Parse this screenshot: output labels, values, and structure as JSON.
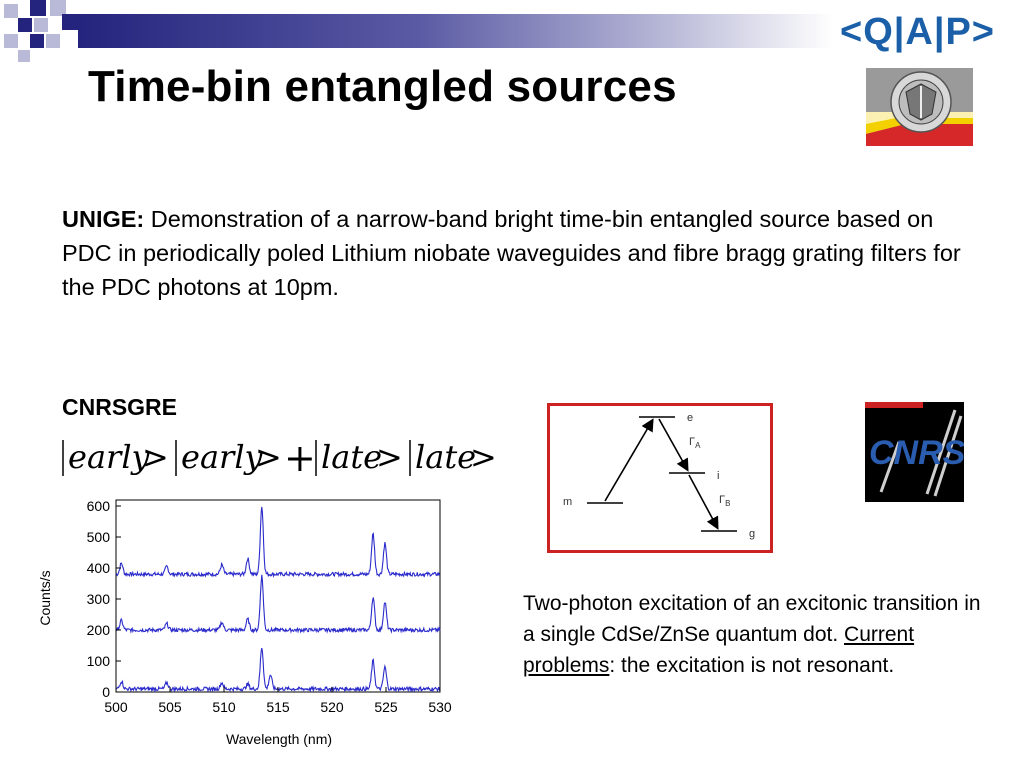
{
  "slide": {
    "title": "Time-bin entangled sources",
    "logo_text": "<Q|A|P>",
    "unige": {
      "label": "UNIGE:",
      "text": " Demonstration of a narrow-band bright time-bin entangled source based on PDC in periodically poled Lithium niobate waveguides and fibre bragg grating filters for the PDC photons at 10pm."
    },
    "cnrs_label": "CNRSGRE",
    "formula": {
      "term1": "early",
      "term2": "early",
      "term3": "late",
      "term4": "late"
    },
    "caption": {
      "part1": "Two-photon excitation of an excitonic transition in a single CdSe/ZnSe quantum dot. ",
      "underlined": "Current problems",
      "part2": ": the excitation is not resonant."
    },
    "level_diagram": {
      "level_e": "e",
      "level_i": "i",
      "level_g": "g",
      "level_m": "m",
      "gamma_a": "Γ",
      "gamma_a_sub": "A",
      "gamma_b": "Γ",
      "gamma_b_sub": "B"
    },
    "cnrs_logo_text": "CNRS"
  },
  "chart_data": {
    "type": "line",
    "xlabel": "Wavelength (nm)",
    "ylabel": "Counts/s",
    "xlim": [
      500,
      530
    ],
    "ylim": [
      0,
      600
    ],
    "xticks": [
      500,
      505,
      510,
      515,
      520,
      525,
      530
    ],
    "yticks": [
      0,
      100,
      200,
      300,
      400,
      500,
      600
    ],
    "series_color": "#2b2bcc",
    "series": [
      {
        "baseline": 380,
        "peaks": [
          [
            500.5,
            35
          ],
          [
            504.7,
            25
          ],
          [
            509.8,
            30
          ],
          [
            512.2,
            50
          ],
          [
            513.5,
            220
          ],
          [
            523.8,
            130
          ],
          [
            524.9,
            100
          ]
        ]
      },
      {
        "baseline": 200,
        "peaks": [
          [
            500.5,
            30
          ],
          [
            504.7,
            20
          ],
          [
            509.8,
            25
          ],
          [
            512.2,
            35
          ],
          [
            513.5,
            175
          ],
          [
            523.8,
            105
          ],
          [
            524.9,
            90
          ]
        ]
      },
      {
        "baseline": 10,
        "peaks": [
          [
            500.5,
            25
          ],
          [
            504.7,
            20
          ],
          [
            509.8,
            20
          ],
          [
            512.2,
            15
          ],
          [
            513.5,
            135
          ],
          [
            514.3,
            45
          ],
          [
            523.8,
            90
          ],
          [
            524.9,
            70
          ]
        ]
      }
    ]
  }
}
